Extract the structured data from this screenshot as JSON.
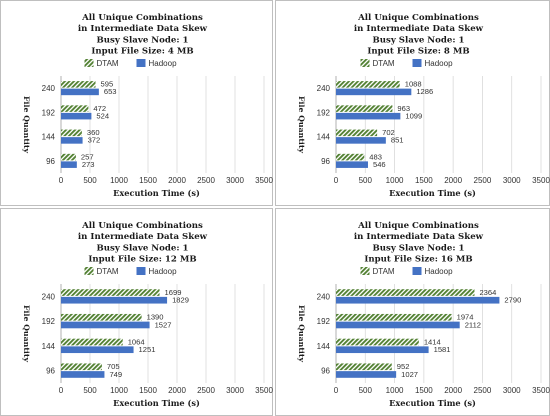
{
  "colors": {
    "dtam": "#548235",
    "hadoop": "#4472c4",
    "grid": "#d9d9d9",
    "border": "#bfbfbf"
  },
  "chart_data": [
    {
      "type": "bar",
      "orientation": "horizontal",
      "title_lines": [
        "All Unique Combinations",
        "in Intermediate Data Skew",
        "Busy Slave Node: 1",
        "Input File Size: 4 MB"
      ],
      "xlabel": "Execution Time (s)",
      "ylabel": "File Quantity",
      "categories": [
        "96",
        "144",
        "192",
        "240"
      ],
      "xlim": [
        0,
        3500
      ],
      "xticks": [
        "0",
        "500",
        "1000",
        "1500",
        "2000",
        "2500",
        "3000",
        "3500"
      ],
      "grid": "vertical",
      "legend_position": "top",
      "series": [
        {
          "name": "DTAM",
          "pattern": "diagonal-hatch",
          "values": [
            257,
            360,
            472,
            595
          ]
        },
        {
          "name": "Hadoop",
          "pattern": "solid",
          "values": [
            273,
            372,
            524,
            653
          ]
        }
      ]
    },
    {
      "type": "bar",
      "orientation": "horizontal",
      "title_lines": [
        "All Unique Combinations",
        "in Intermediate Data Skew",
        "Busy Slave Node: 1",
        "Input File Size: 8 MB"
      ],
      "xlabel": "Execution Time (s)",
      "ylabel": "File Quantity",
      "categories": [
        "96",
        "144",
        "192",
        "240"
      ],
      "xlim": [
        0,
        3500
      ],
      "xticks": [
        "0",
        "500",
        "1000",
        "1500",
        "2000",
        "2500",
        "3000",
        "3500"
      ],
      "grid": "vertical",
      "legend_position": "top",
      "series": [
        {
          "name": "DTAM",
          "pattern": "diagonal-hatch",
          "values": [
            483,
            702,
            963,
            1088
          ]
        },
        {
          "name": "Hadoop",
          "pattern": "solid",
          "values": [
            546,
            851,
            1099,
            1286
          ]
        }
      ]
    },
    {
      "type": "bar",
      "orientation": "horizontal",
      "title_lines": [
        "All Unique Combinations",
        "in Intermediate Data Skew",
        "Busy Slave Node: 1",
        "Input File Size: 12 MB"
      ],
      "xlabel": "Execution Time (s)",
      "ylabel": "File Quantity",
      "categories": [
        "96",
        "144",
        "192",
        "240"
      ],
      "xlim": [
        0,
        3500
      ],
      "xticks": [
        "0",
        "500",
        "1000",
        "1500",
        "2000",
        "2500",
        "3000",
        "3500"
      ],
      "grid": "vertical",
      "legend_position": "top",
      "series": [
        {
          "name": "DTAM",
          "pattern": "diagonal-hatch",
          "values": [
            705,
            1064,
            1390,
            1699
          ]
        },
        {
          "name": "Hadoop",
          "pattern": "solid",
          "values": [
            749,
            1251,
            1527,
            1829
          ]
        }
      ]
    },
    {
      "type": "bar",
      "orientation": "horizontal",
      "title_lines": [
        "All Unique Combinations",
        "in Intermediate Data Skew",
        "Busy Slave Node: 1",
        "Input File Size: 16 MB"
      ],
      "xlabel": "Execution Time (s)",
      "ylabel": "File Quantity",
      "categories": [
        "96",
        "144",
        "192",
        "240"
      ],
      "xlim": [
        0,
        3500
      ],
      "xticks": [
        "0",
        "500",
        "1000",
        "1500",
        "2000",
        "2500",
        "3000",
        "3500"
      ],
      "grid": "vertical",
      "legend_position": "top",
      "series": [
        {
          "name": "DTAM",
          "pattern": "diagonal-hatch",
          "values": [
            952,
            1414,
            1974,
            2364
          ]
        },
        {
          "name": "Hadoop",
          "pattern": "solid",
          "values": [
            1027,
            1581,
            2112,
            2790
          ]
        }
      ]
    }
  ]
}
